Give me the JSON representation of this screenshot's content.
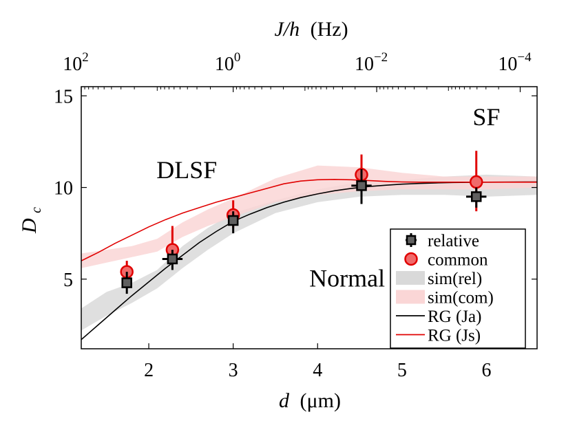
{
  "chart_data": {
    "type": "scatter",
    "xlabel": {
      "var": "d",
      "unit": "(μm)"
    },
    "ylabel": {
      "main": "D",
      "sub": "c"
    },
    "top_axis": {
      "label": {
        "var": "J/h",
        "unit": "(Hz)"
      },
      "ticks": [
        {
          "x": 1.2,
          "base": "10",
          "exp": "2"
        },
        {
          "x": 3.0,
          "base": "10",
          "exp": "0"
        },
        {
          "x": 4.7,
          "base": "10",
          "exp": "−2"
        },
        {
          "x": 6.4,
          "base": "10",
          "exp": "−4"
        }
      ]
    },
    "xlim": [
      1.2,
      6.6
    ],
    "ylim": [
      1.2,
      15.5
    ],
    "xticks": [
      2,
      3,
      4,
      5,
      6
    ],
    "yticks": [
      5,
      10,
      15
    ],
    "region_labels": [
      {
        "text": "DLSF",
        "x": 2.45,
        "y": 10.5
      },
      {
        "text": "SF",
        "x": 6.0,
        "y": 13.4
      },
      {
        "text": "Normal",
        "x": 4.35,
        "y": 4.6
      }
    ],
    "series": [
      {
        "name": "relative",
        "kind": "points",
        "color": "#000000",
        "fill": "#606060",
        "marker": "square",
        "points": [
          {
            "x": 1.74,
            "y": 4.8,
            "ylo": 4.2,
            "yhi": 5.4,
            "xerr": 0.05
          },
          {
            "x": 2.28,
            "y": 6.1,
            "ylo": 5.5,
            "yhi": 6.6,
            "xerr": 0.12
          },
          {
            "x": 3.0,
            "y": 8.2,
            "ylo": 7.5,
            "yhi": 8.7,
            "xerr": 0.05
          },
          {
            "x": 4.52,
            "y": 10.1,
            "ylo": 9.1,
            "yhi": 11.0,
            "xerr": 0.12
          },
          {
            "x": 5.88,
            "y": 9.5,
            "ylo": 8.9,
            "yhi": 10.0,
            "xerr": 0.12
          }
        ]
      },
      {
        "name": "common",
        "kind": "points",
        "color": "#e00000",
        "fill": "#f06a6a",
        "marker": "circle",
        "points": [
          {
            "x": 1.74,
            "y": 5.4,
            "ylo": 4.9,
            "yhi": 6.0
          },
          {
            "x": 2.28,
            "y": 6.6,
            "ylo": 5.8,
            "yhi": 7.9
          },
          {
            "x": 3.0,
            "y": 8.5,
            "ylo": 7.8,
            "yhi": 9.3
          },
          {
            "x": 4.52,
            "y": 10.7,
            "ylo": 9.5,
            "yhi": 11.8
          },
          {
            "x": 5.88,
            "y": 10.3,
            "ylo": 8.7,
            "yhi": 12.0
          }
        ]
      },
      {
        "name": "sim(rel)",
        "kind": "band",
        "fill": "#d9d9d9",
        "x": [
          1.2,
          1.5,
          1.8,
          2.1,
          2.4,
          2.7,
          3.0,
          3.5,
          4.0,
          4.5,
          5.0,
          5.5,
          6.0,
          6.6
        ],
        "lower": [
          2.2,
          3.0,
          3.7,
          4.5,
          5.6,
          6.6,
          7.5,
          8.6,
          9.2,
          9.5,
          9.6,
          9.6,
          9.5,
          9.6
        ],
        "upper": [
          3.4,
          4.3,
          4.8,
          5.5,
          6.8,
          7.8,
          8.6,
          9.3,
          9.9,
          10.3,
          10.4,
          10.6,
          10.7,
          10.6
        ]
      },
      {
        "name": "sim(com)",
        "kind": "band",
        "fill": "#fad6d6",
        "x": [
          1.2,
          1.5,
          1.8,
          2.1,
          2.4,
          2.7,
          3.0,
          3.5,
          4.0,
          4.5,
          5.0,
          5.5,
          6.0,
          6.6
        ],
        "lower": [
          5.6,
          5.9,
          6.2,
          6.5,
          7.3,
          7.9,
          8.4,
          9.2,
          9.6,
          9.8,
          9.9,
          9.9,
          9.9,
          10.0
        ],
        "upper": [
          6.4,
          6.6,
          6.8,
          7.2,
          8.1,
          8.8,
          9.4,
          10.5,
          11.2,
          11.1,
          10.8,
          10.6,
          10.6,
          10.6
        ]
      },
      {
        "name": "RG (Ja)",
        "kind": "line",
        "color": "#000000",
        "x": [
          1.2,
          1.4,
          1.6,
          1.8,
          2.0,
          2.2,
          2.4,
          2.6,
          2.8,
          3.0,
          3.2,
          3.4,
          3.6,
          3.8,
          4.0,
          4.2,
          4.4,
          4.6,
          4.8,
          5.0,
          5.2,
          5.4,
          5.6,
          5.8,
          6.0,
          6.6
        ],
        "y": [
          1.7,
          2.5,
          3.3,
          4.1,
          4.85,
          5.6,
          6.3,
          7.0,
          7.6,
          8.15,
          8.55,
          8.9,
          9.2,
          9.45,
          9.65,
          9.82,
          9.95,
          10.05,
          10.12,
          10.18,
          10.22,
          10.25,
          10.27,
          10.28,
          10.29,
          10.3
        ]
      },
      {
        "name": "RG (Js)",
        "kind": "line",
        "color": "#e00000",
        "x": [
          1.2,
          1.4,
          1.6,
          1.8,
          2.0,
          2.2,
          2.4,
          2.6,
          2.8,
          3.0,
          3.2,
          3.4,
          3.6,
          3.8,
          4.0,
          4.2,
          4.4,
          4.6,
          4.8,
          5.0,
          5.2,
          5.4,
          5.6,
          5.8,
          6.0,
          6.6
        ],
        "y": [
          6.0,
          6.45,
          6.95,
          7.4,
          7.85,
          8.25,
          8.6,
          8.9,
          9.2,
          9.45,
          9.7,
          9.95,
          10.2,
          10.35,
          10.42,
          10.44,
          10.42,
          10.38,
          10.33,
          10.3,
          10.29,
          10.29,
          10.29,
          10.29,
          10.29,
          10.29
        ]
      }
    ],
    "legend": {
      "position": "lower-right",
      "entries": [
        {
          "label": "relative",
          "symbol": "square",
          "color": "#000000",
          "fill": "#606060"
        },
        {
          "label": "common",
          "symbol": "circle",
          "color": "#e00000",
          "fill": "#f06a6a"
        },
        {
          "label": "sim(rel)",
          "symbol": "patch",
          "fill": "#d9d9d9"
        },
        {
          "label": "sim(com)",
          "symbol": "patch",
          "fill": "#fad6d6"
        },
        {
          "label": "RG (Ja)",
          "symbol": "line",
          "color": "#000000"
        },
        {
          "label": "RG (Js)",
          "symbol": "line",
          "color": "#e00000"
        }
      ]
    }
  }
}
